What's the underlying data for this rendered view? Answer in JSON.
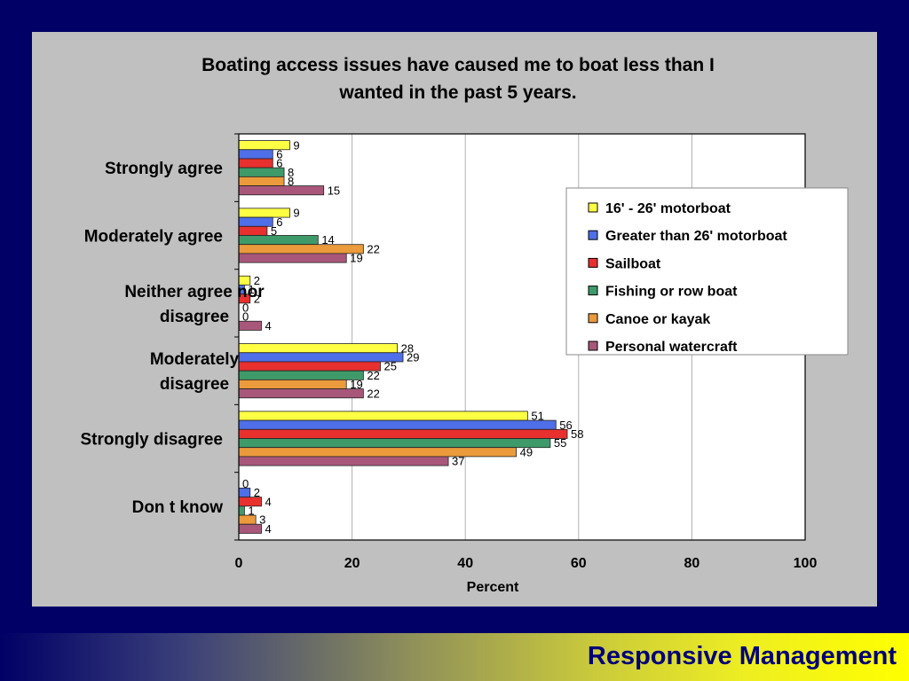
{
  "footer": {
    "brand": "Responsive Management"
  },
  "colors": {
    "background": "#000066",
    "panel": "#c0c0c0",
    "plot": "#ffffff",
    "brand_text": "#00007a"
  },
  "chart_data": {
    "type": "bar",
    "orientation": "horizontal",
    "title_lines": [
      "Boating access issues have caused me to boat less than I",
      "wanted in the past 5 years."
    ],
    "xlabel": "Percent",
    "ylabel": "",
    "xlim": [
      0,
      100
    ],
    "x_ticks": [
      0,
      20,
      40,
      60,
      80,
      100
    ],
    "grid": true,
    "legend_position": "right",
    "categories": [
      [
        "Strongly agree"
      ],
      [
        "Moderately agree"
      ],
      [
        "Neither agree nor",
        "disagree"
      ],
      [
        "Moderately",
        "disagree"
      ],
      [
        "Strongly disagree"
      ],
      [
        "Don t know"
      ]
    ],
    "series": [
      {
        "name": "16' - 26' motorboat",
        "color": "#ffff44",
        "values": [
          9,
          9,
          2,
          28,
          51,
          0
        ]
      },
      {
        "name": "Greater than 26' motorboat",
        "color": "#4f6fe8",
        "values": [
          6,
          6,
          1,
          29,
          56,
          2
        ]
      },
      {
        "name": "Sailboat",
        "color": "#e8302e",
        "values": [
          6,
          5,
          2,
          25,
          58,
          4
        ]
      },
      {
        "name": "Fishing or row boat",
        "color": "#3f9a6a",
        "values": [
          8,
          14,
          0,
          22,
          55,
          1
        ]
      },
      {
        "name": "Canoe or kayak",
        "color": "#eb9a3c",
        "values": [
          8,
          22,
          0,
          19,
          49,
          3
        ]
      },
      {
        "name": "Personal watercraft",
        "color": "#a8577a",
        "values": [
          15,
          19,
          4,
          22,
          37,
          4
        ]
      }
    ]
  }
}
